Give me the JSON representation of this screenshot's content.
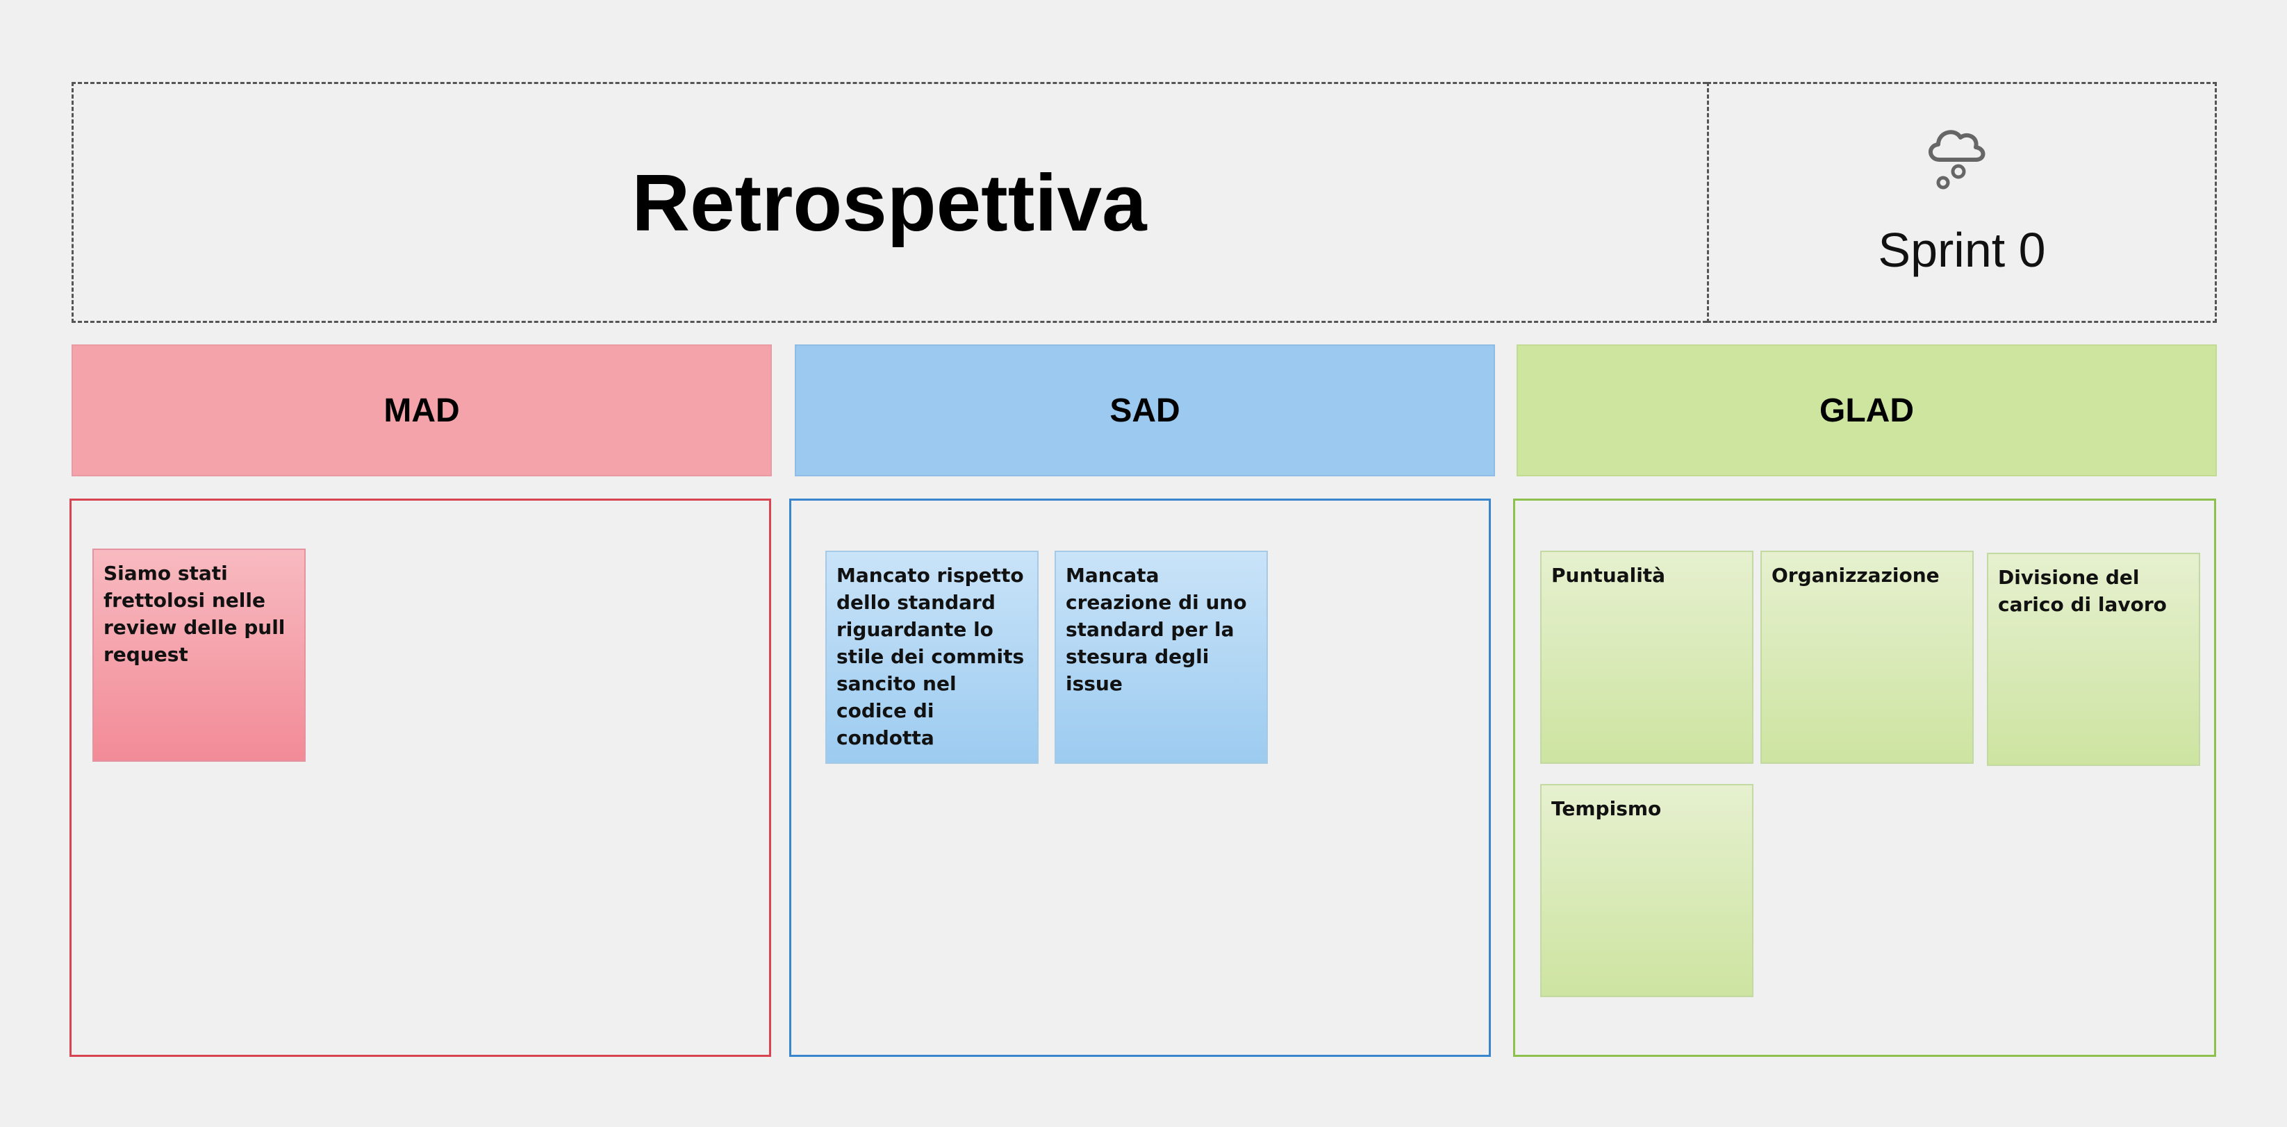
{
  "header": {
    "title": "Retrospettiva",
    "sprint": "Sprint 0",
    "icon": "cloud-rain-icon"
  },
  "columns": [
    {
      "label": "MAD",
      "color": "#f5a3ab",
      "border_color": "#d94452",
      "notes": [
        "Siamo stati frettolosi nelle review delle pull request"
      ]
    },
    {
      "label": "SAD",
      "color": "#9bc9ef",
      "border_color": "#3a86cc",
      "notes": [
        "Mancato rispetto dello standard riguardante lo stile dei commits sancito nel codice di condotta",
        "Mancata creazione di uno standard per la stesura degli issue"
      ]
    },
    {
      "label": "GLAD",
      "color": "#cde59f",
      "border_color": "#8dc04d",
      "notes": [
        "Puntualità",
        "Organizzazione",
        "Divisione del carico di lavoro",
        "Tempismo"
      ]
    }
  ]
}
